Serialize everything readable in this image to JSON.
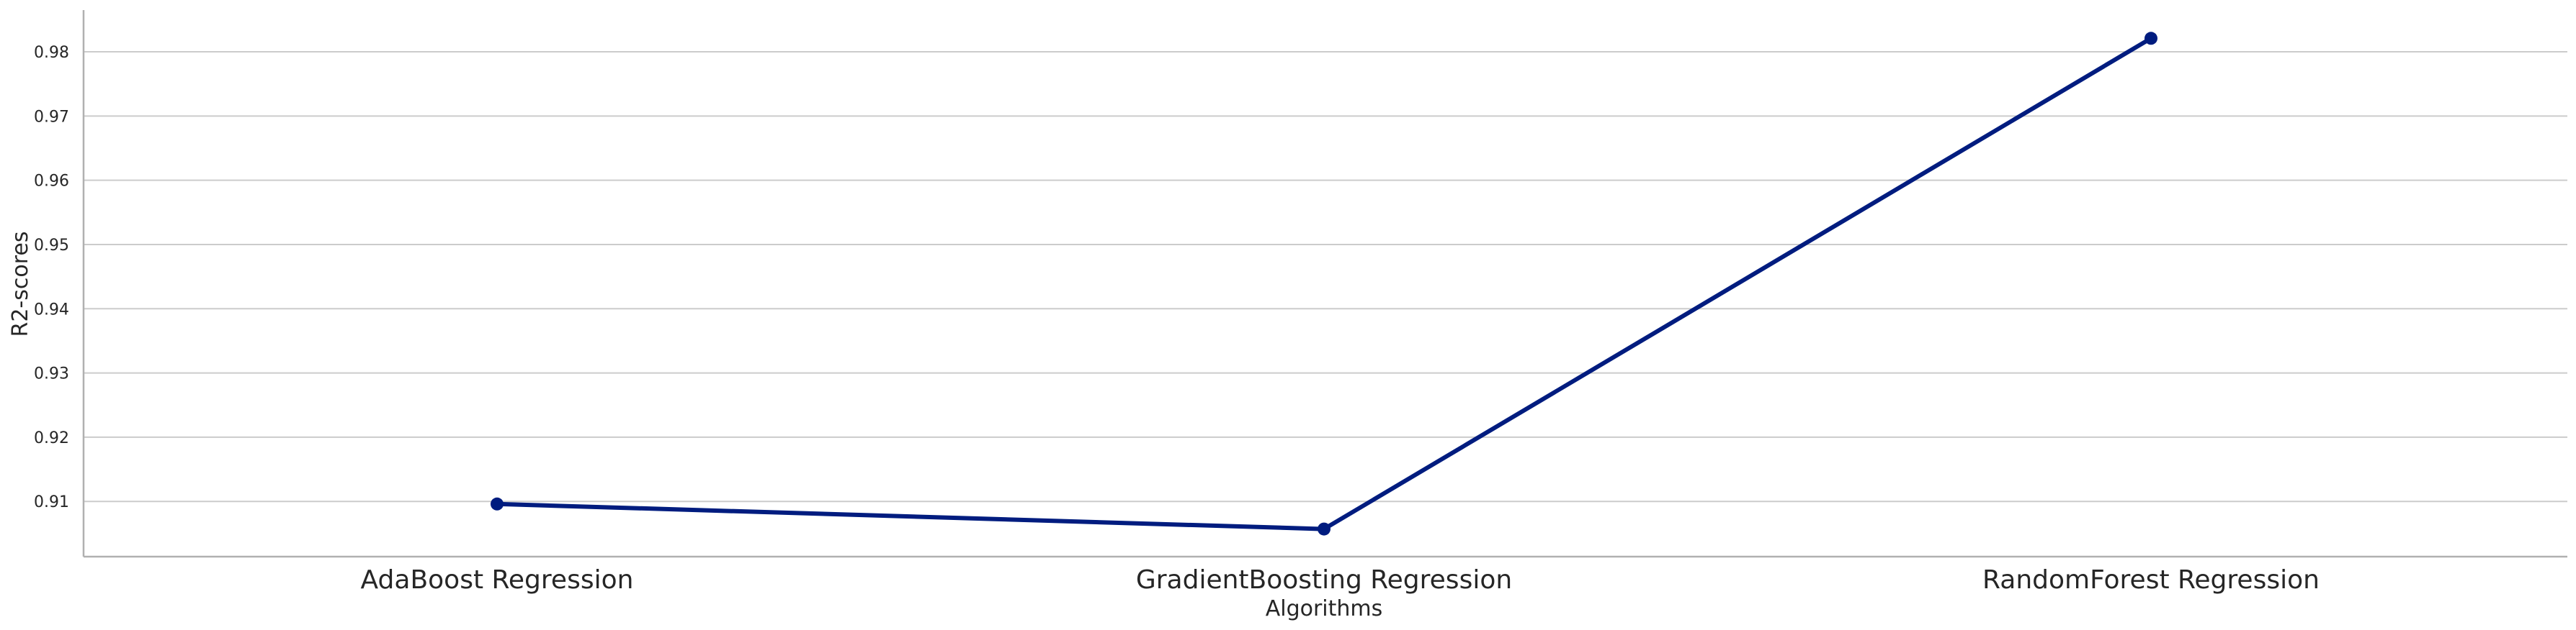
{
  "chart_data": {
    "type": "line",
    "title": "",
    "xlabel": "Algorithms",
    "ylabel": "R2-scores",
    "categories": [
      "AdaBoost Regression",
      "GradientBoosting Regression",
      "RandomForest Regression"
    ],
    "series": [
      {
        "values": [
          0.9096,
          0.9057,
          0.9821
        ]
      }
    ],
    "ylim": [
      0.9014,
      0.9865
    ],
    "yticks": [
      "0.91",
      "0.92",
      "0.93",
      "0.94",
      "0.95",
      "0.96",
      "0.97",
      "0.98"
    ],
    "ytick_values": [
      0.91,
      0.92,
      0.93,
      0.94,
      0.95,
      0.96,
      0.97,
      0.98
    ],
    "grid": "horizontal",
    "legend": "none",
    "colors": {
      "series": "#001c7f",
      "grid": "#cccccc",
      "axis": "#b0b0b0",
      "text": "#262626"
    }
  }
}
